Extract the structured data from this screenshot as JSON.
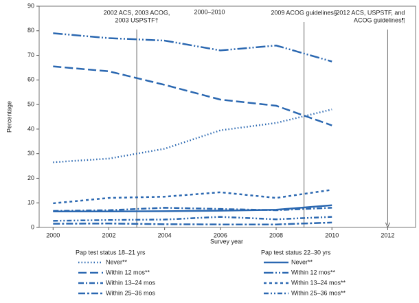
{
  "chart_data": {
    "type": "line",
    "x_label": "Survey year",
    "y_label": "Percentage",
    "x": [
      2000,
      2002,
      2004,
      2006,
      2008,
      2010
    ],
    "xlim": [
      1999.5,
      2013
    ],
    "xticks": [
      2000,
      2002,
      2004,
      2006,
      2008,
      2010,
      2012
    ],
    "ylim": [
      0,
      90
    ],
    "yticks": [
      0,
      10,
      20,
      30,
      40,
      50,
      60,
      70,
      80,
      90
    ],
    "legend_groups": [
      "Pap test status 18–21 yrs",
      "Pap test status 22–30 yrs"
    ],
    "series": [
      {
        "name": "Never**",
        "group": 0,
        "color": "#2b68b1",
        "dash": "1.5 3",
        "values": [
          26.5,
          28,
          32,
          39.5,
          42.5,
          48
        ]
      },
      {
        "name": "Within 12 mos**",
        "group": 0,
        "color": "#2b68b1",
        "dash": "12 5",
        "values": [
          65.5,
          63.5,
          58,
          52,
          49.5,
          41.5
        ]
      },
      {
        "name": "Within 13–24 mos",
        "group": 0,
        "color": "#2b68b1",
        "dash": "8 3 2 3",
        "values": [
          6.7,
          7,
          8,
          7.5,
          7,
          8
        ]
      },
      {
        "name": "Within 25–36 mos",
        "group": 0,
        "color": "#2b68b1",
        "dash": "10 3 3 3",
        "values": [
          1.5,
          1.6,
          1.3,
          1.2,
          1.2,
          2
        ]
      },
      {
        "name": "Never**",
        "group": 1,
        "color": "#2b68b1",
        "dash": "none",
        "values": [
          6.5,
          6.5,
          6.6,
          6.8,
          7.2,
          9
        ]
      },
      {
        "name": "Within 12 mos**",
        "group": 1,
        "color": "#2b68b1",
        "dash": "14 3 2 3 2 3",
        "values": [
          79,
          77,
          76,
          72,
          74,
          67.5
        ]
      },
      {
        "name": "Within 13–24 mos**",
        "group": 1,
        "color": "#2b68b1",
        "dash": "4 4",
        "values": [
          9.8,
          12,
          12.5,
          14.3,
          12,
          15.3
        ]
      },
      {
        "name": "Within 25–36 mos**",
        "group": 1,
        "color": "#2b68b1",
        "dash": "7 3 2 3 2 3",
        "values": [
          2.7,
          3,
          3.2,
          4.3,
          3.3,
          4.3
        ]
      }
    ],
    "annotations": [
      {
        "x": 2003,
        "lines": [
          "2002 ACS, 2003 ACOG,",
          "2003 USPSTF†"
        ]
      },
      {
        "x": 2009,
        "lines": [
          "2009 ACOG guidelines§"
        ]
      },
      {
        "x": 2012,
        "lines": [
          "2012 ACS, USPSTF, and",
          "ACOG guidelines¶"
        ]
      }
    ],
    "period_label": "2000–2010"
  }
}
